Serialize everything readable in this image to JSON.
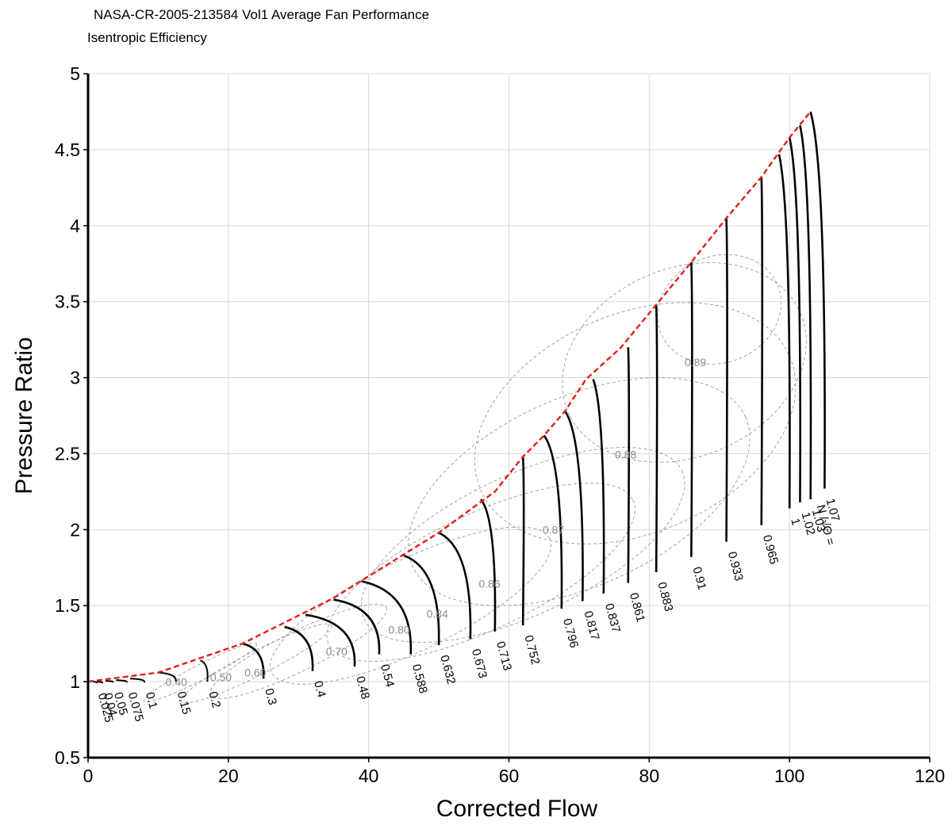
{
  "chart_data": {
    "type": "line",
    "title": "NASA-CR-2005-213584 Vol1 Average Fan Performance",
    "subtitle": "Isentropic Efficiency",
    "xlabel": "Corrected Flow",
    "ylabel": "Pressure Ratio",
    "xlim": [
      0,
      120
    ],
    "ylim": [
      0.5,
      5
    ],
    "xticks": [
      0,
      20,
      40,
      60,
      80,
      100,
      120
    ],
    "yticks": [
      0.5,
      1,
      1.5,
      2,
      2.5,
      3,
      3.5,
      4,
      4.5,
      5
    ],
    "grid": true,
    "speed_label_prefix": "N /√Θ =",
    "surge_line": {
      "color": "#e0201b",
      "x": [
        0,
        10,
        22,
        35,
        50,
        58,
        62,
        65,
        68,
        71,
        76,
        81,
        86,
        91,
        96,
        100,
        103
      ],
      "y": [
        1.0,
        1.06,
        1.25,
        1.55,
        1.98,
        2.25,
        2.48,
        2.62,
        2.78,
        2.99,
        3.2,
        3.48,
        3.76,
        4.05,
        4.32,
        4.58,
        4.75
      ]
    },
    "speed_lines": [
      {
        "label": "0.025",
        "x_surge": 0.7,
        "pr_surge": 1.0,
        "x_choke": 1.2,
        "pr_choke": 0.99
      },
      {
        "label": "0.04",
        "x_surge": 1.2,
        "pr_surge": 1.0,
        "x_choke": 2.0,
        "pr_choke": 0.99
      },
      {
        "label": "0.05",
        "x_surge": 2.5,
        "pr_surge": 1.005,
        "x_choke": 3.5,
        "pr_choke": 0.995
      },
      {
        "label": "0.075",
        "x_surge": 4.0,
        "pr_surge": 1.01,
        "x_choke": 5.5,
        "pr_choke": 0.995
      },
      {
        "label": "0.1",
        "x_surge": 6.0,
        "pr_surge": 1.02,
        "x_choke": 8.0,
        "pr_choke": 0.995
      },
      {
        "label": "0.15",
        "x_surge": 10.0,
        "pr_surge": 1.06,
        "x_choke": 12.5,
        "pr_choke": 1.0
      },
      {
        "label": "0.2",
        "x_surge": 16.0,
        "pr_surge": 1.14,
        "x_choke": 17.0,
        "pr_choke": 1.0
      },
      {
        "label": "0.3",
        "x_surge": 22.0,
        "pr_surge": 1.25,
        "x_choke": 25.0,
        "pr_choke": 1.02
      },
      {
        "label": "0.4",
        "x_surge": 28.0,
        "pr_surge": 1.36,
        "x_choke": 32.0,
        "pr_choke": 1.07
      },
      {
        "label": "0.48",
        "x_surge": 31.0,
        "pr_surge": 1.44,
        "x_choke": 38.0,
        "pr_choke": 1.1
      },
      {
        "label": "0.54",
        "x_surge": 35.0,
        "pr_surge": 1.54,
        "x_choke": 41.5,
        "pr_choke": 1.18
      },
      {
        "label": "0.588",
        "x_surge": 39.0,
        "pr_surge": 1.66,
        "x_choke": 46.0,
        "pr_choke": 1.18
      },
      {
        "label": "0.632",
        "x_surge": 45.0,
        "pr_surge": 1.83,
        "x_choke": 50.0,
        "pr_choke": 1.24
      },
      {
        "label": "0.673",
        "x_surge": 50.0,
        "pr_surge": 1.98,
        "x_choke": 54.5,
        "pr_choke": 1.28
      },
      {
        "label": "0.713",
        "x_surge": 56.0,
        "pr_surge": 2.2,
        "x_choke": 58.0,
        "pr_choke": 1.33
      },
      {
        "label": "0.752",
        "x_surge": 62.0,
        "pr_surge": 2.48,
        "x_choke": 62.0,
        "pr_choke": 1.37
      },
      {
        "label": "0.796",
        "x_surge": 65.0,
        "pr_surge": 2.62,
        "x_choke": 67.5,
        "pr_choke": 1.48
      },
      {
        "label": "0.817",
        "x_surge": 68.0,
        "pr_surge": 2.78,
        "x_choke": 70.5,
        "pr_choke": 1.53
      },
      {
        "label": "0.837",
        "x_surge": 72.0,
        "pr_surge": 2.99,
        "x_choke": 73.5,
        "pr_choke": 1.58
      },
      {
        "label": "0.861",
        "x_surge": 77.0,
        "pr_surge": 3.2,
        "x_choke": 77.0,
        "pr_choke": 1.65
      },
      {
        "label": "0.883",
        "x_surge": 81.0,
        "pr_surge": 3.48,
        "x_choke": 81.0,
        "pr_choke": 1.72
      },
      {
        "label": "0.91",
        "x_surge": 86.0,
        "pr_surge": 3.76,
        "x_choke": 86.0,
        "pr_choke": 1.82
      },
      {
        "label": "0.933",
        "x_surge": 91.0,
        "pr_surge": 4.05,
        "x_choke": 91.0,
        "pr_choke": 1.92
      },
      {
        "label": "0.965",
        "x_surge": 96.0,
        "pr_surge": 4.32,
        "x_choke": 96.0,
        "pr_choke": 2.03
      },
      {
        "label": "1",
        "x_surge": 98.5,
        "pr_surge": 4.47,
        "x_choke": 100.0,
        "pr_choke": 2.14
      },
      {
        "label": "1.02",
        "x_surge": 100.0,
        "pr_surge": 4.58,
        "x_choke": 101.5,
        "pr_choke": 2.18
      },
      {
        "label": "1.03",
        "x_surge": 101.5,
        "pr_surge": 4.66,
        "x_choke": 103.0,
        "pr_choke": 2.2
      },
      {
        "label": "1.07",
        "x_surge": 103.0,
        "pr_surge": 4.75,
        "x_choke": 105.0,
        "pr_choke": 2.27
      }
    ],
    "efficiency_contours": [
      {
        "label": "0.40",
        "cx": 16,
        "cy": 1.06,
        "rx": 9,
        "ry": 0.05
      },
      {
        "label": "0.50",
        "cx": 24,
        "cy": 1.12,
        "rx": 12,
        "ry": 0.08
      },
      {
        "label": "0.60",
        "cx": 30,
        "cy": 1.2,
        "rx": 14,
        "ry": 0.13
      },
      {
        "label": "0.70",
        "cx": 46,
        "cy": 1.5,
        "rx": 22,
        "ry": 0.3
      },
      {
        "label": "0.80",
        "cx": 56,
        "cy": 1.72,
        "rx": 24,
        "ry": 0.38
      },
      {
        "label": "0.84",
        "cx": 62,
        "cy": 1.9,
        "rx": 25,
        "ry": 0.46
      },
      {
        "label": "0.86",
        "cx": 70,
        "cy": 2.25,
        "rx": 26,
        "ry": 0.62
      },
      {
        "label": "0.87",
        "cx": 78,
        "cy": 2.7,
        "rx": 24,
        "ry": 0.72
      },
      {
        "label": "0.88",
        "cx": 85,
        "cy": 3.1,
        "rx": 18,
        "ry": 0.62
      },
      {
        "label": "0.89",
        "cx": 90,
        "cy": 3.45,
        "rx": 9,
        "ry": 0.35
      }
    ]
  }
}
